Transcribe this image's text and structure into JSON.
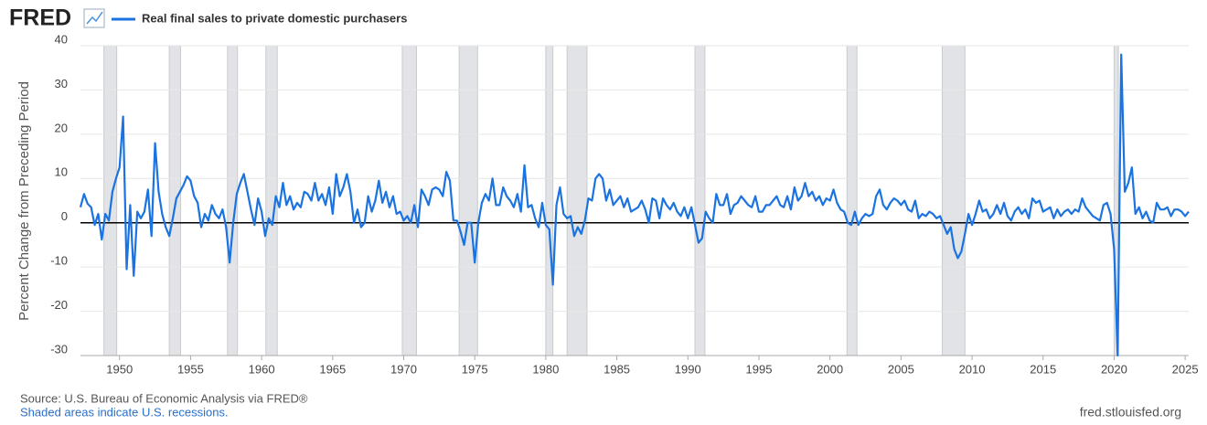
{
  "logo": "FRED",
  "chart_data": {
    "type": "line",
    "ylabel": "Percent Change from Preceding Period",
    "series": [
      {
        "name": "Real final sales to private domestic purchasers",
        "color": "#1a73e0",
        "values": [
          3.5,
          6.5,
          4.3,
          3.5,
          -0.5,
          2,
          -3.8,
          2,
          0.5,
          7,
          10,
          12.5,
          24,
          -10.5,
          4,
          -12,
          2.5,
          1,
          2.5,
          7.5,
          -3,
          18,
          7,
          2,
          -1,
          -3,
          1,
          5.5,
          7,
          8.5,
          10.5,
          9.5,
          6,
          4.5,
          -1,
          2,
          0.5,
          4,
          2,
          1,
          3,
          -1,
          -9,
          0,
          6.5,
          9,
          11,
          7,
          3,
          -0.5,
          5.5,
          2.5,
          -3,
          1,
          -0.5,
          6,
          3.5,
          9,
          4,
          6,
          3,
          4.5,
          3.5,
          7,
          6.5,
          5,
          9,
          5,
          6.5,
          4,
          8,
          2,
          11,
          6,
          8,
          11,
          7,
          0,
          3,
          -1,
          0,
          6,
          2.5,
          5,
          9.5,
          4.5,
          7,
          3.5,
          6,
          2,
          2.5,
          0.5,
          1.5,
          0,
          4,
          -1,
          7.5,
          6,
          4,
          7.5,
          8,
          7.5,
          6,
          11.5,
          9.5,
          0.5,
          0.5,
          -2,
          -5,
          0,
          0,
          -9,
          0,
          4.5,
          6.5,
          5,
          10,
          4,
          4,
          8,
          6,
          5,
          3.5,
          6.5,
          2.5,
          13,
          3.5,
          4,
          1,
          -1,
          4.5,
          -0.5,
          -1.5,
          -14,
          4,
          8,
          2,
          1,
          1.5,
          -3,
          -1,
          -2.5,
          0.5,
          5.5,
          5,
          10,
          11,
          10,
          5,
          7.5,
          4,
          5,
          6,
          3.5,
          5.5,
          2.5,
          3,
          3.5,
          5,
          3,
          0,
          5.5,
          5,
          1,
          5.5,
          4,
          3,
          4.5,
          2.5,
          1.5,
          3.5,
          1,
          3.5,
          -0.5,
          -4.5,
          -3.5,
          2.5,
          1,
          0,
          6.5,
          4,
          4,
          6.5,
          2,
          4,
          4.5,
          6,
          5,
          4,
          3.5,
          6,
          2.5,
          2.5,
          4,
          4,
          5,
          6,
          4,
          3.5,
          6,
          3,
          8,
          5,
          6,
          9,
          6,
          7,
          5,
          6,
          4,
          5.5,
          5,
          7.5,
          4.5,
          3,
          2.5,
          0,
          -0.5,
          2.5,
          -0.5,
          1,
          2,
          1.5,
          2,
          6,
          7.5,
          4,
          3,
          4.5,
          5.5,
          5,
          4,
          5,
          3,
          2.5,
          5,
          1,
          2,
          1.5,
          2.5,
          2,
          1,
          1.5,
          -0.5,
          -2.5,
          -1,
          -6,
          -8,
          -6.5,
          -2.5,
          2,
          -0.5,
          2,
          5,
          2.5,
          3,
          1,
          2,
          4,
          2,
          4.5,
          1.5,
          0.5,
          2.5,
          3.5,
          2,
          3,
          1,
          5.5,
          4.5,
          5,
          2.5,
          3,
          3.5,
          1,
          3,
          1.5,
          2.5,
          3,
          2,
          3,
          2.5,
          5.5,
          3.5,
          2.5,
          1.5,
          1,
          0.5,
          4,
          4.5,
          2,
          -6,
          -30,
          38,
          7,
          9,
          12.5,
          2,
          3.5,
          1,
          2.5,
          0.5,
          0,
          4.5,
          3,
          3,
          3.5,
          1.5,
          3,
          3,
          2.5,
          1.5,
          2.5
        ]
      }
    ],
    "x": [
      1947.25,
      1947.5,
      1947.75,
      1948,
      1948.25,
      1948.5,
      1948.75,
      1949,
      1949.25,
      1949.5,
      1949.75,
      1950,
      1950.25,
      1950.5,
      1950.75,
      1951,
      1951.25,
      1951.5,
      1951.75,
      1952,
      1952.25,
      1952.5,
      1952.75,
      1953,
      1953.25,
      1953.5,
      1953.75,
      1954,
      1954.25,
      1954.5,
      1954.75,
      1955,
      1955.25,
      1955.5,
      1955.75,
      1956,
      1956.25,
      1956.5,
      1956.75,
      1957,
      1957.25,
      1957.5,
      1957.75,
      1958,
      1958.25,
      1958.5,
      1958.75,
      1959,
      1959.25,
      1959.5,
      1959.75,
      1960,
      1960.25,
      1960.5,
      1960.75,
      1961,
      1961.25,
      1961.5,
      1961.75,
      1962,
      1962.25,
      1962.5,
      1962.75,
      1963,
      1963.25,
      1963.5,
      1963.75,
      1964,
      1964.25,
      1964.5,
      1964.75,
      1965,
      1965.25,
      1965.5,
      1965.75,
      1966,
      1966.25,
      1966.5,
      1966.75,
      1967,
      1967.25,
      1967.5,
      1967.75,
      1968,
      1968.25,
      1968.5,
      1968.75,
      1969,
      1969.25,
      1969.5,
      1969.75,
      1970,
      1970.25,
      1970.5,
      1970.75,
      1971,
      1971.25,
      1971.5,
      1971.75,
      1972,
      1972.25,
      1972.5,
      1972.75,
      1973,
      1973.25,
      1973.5,
      1973.75,
      1974,
      1974.25,
      1974.5,
      1974.75,
      1975,
      1975.25,
      1975.5,
      1975.75,
      1976,
      1976.25,
      1976.5,
      1976.75,
      1977,
      1977.25,
      1977.5,
      1977.75,
      1978,
      1978.25,
      1978.5,
      1978.75,
      1979,
      1979.25,
      1979.5,
      1979.75,
      1980,
      1980.25,
      1980.5,
      1980.75,
      1981,
      1981.25,
      1981.5,
      1981.75,
      1982,
      1982.25,
      1982.5,
      1982.75,
      1983,
      1983.25,
      1983.5,
      1983.75,
      1984,
      1984.25,
      1984.5,
      1984.75,
      1985,
      1985.25,
      1985.5,
      1985.75,
      1986,
      1986.25,
      1986.5,
      1986.75,
      1987,
      1987.25,
      1987.5,
      1987.75,
      1988,
      1988.25,
      1988.5,
      1988.75,
      1989,
      1989.25,
      1989.5,
      1989.75,
      1990,
      1990.25,
      1990.5,
      1990.75,
      1991,
      1991.25,
      1991.5,
      1991.75,
      1992,
      1992.25,
      1992.5,
      1992.75,
      1993,
      1993.25,
      1993.5,
      1993.75,
      1994,
      1994.25,
      1994.5,
      1994.75,
      1995,
      1995.25,
      1995.5,
      1995.75,
      1996,
      1996.25,
      1996.5,
      1996.75,
      1997,
      1997.25,
      1997.5,
      1997.75,
      1998,
      1998.25,
      1998.5,
      1998.75,
      1999,
      1999.25,
      1999.5,
      1999.75,
      2000,
      2000.25,
      2000.5,
      2000.75,
      2001,
      2001.25,
      2001.5,
      2001.75,
      2002,
      2002.25,
      2002.5,
      2002.75,
      2003,
      2003.25,
      2003.5,
      2003.75,
      2004,
      2004.25,
      2004.5,
      2004.75,
      2005,
      2005.25,
      2005.5,
      2005.75,
      2006,
      2006.25,
      2006.5,
      2006.75,
      2007,
      2007.25,
      2007.5,
      2007.75,
      2008,
      2008.25,
      2008.5,
      2008.75,
      2009,
      2009.25,
      2009.5,
      2009.75,
      2010,
      2010.25,
      2010.5,
      2010.75,
      2011,
      2011.25,
      2011.5,
      2011.75,
      2012,
      2012.25,
      2012.5,
      2012.75,
      2013,
      2013.25,
      2013.5,
      2013.75,
      2014,
      2014.25,
      2014.5,
      2014.75,
      2015,
      2015.25,
      2015.5,
      2015.75,
      2016,
      2016.25,
      2016.5,
      2016.75,
      2017,
      2017.25,
      2017.5,
      2017.75,
      2018,
      2018.25,
      2018.5,
      2018.75,
      2019,
      2019.25,
      2019.5,
      2019.75,
      2020,
      2020.25,
      2020.5,
      2020.75,
      2021,
      2021.25,
      2021.5,
      2021.75,
      2022,
      2022.25,
      2022.5,
      2022.75,
      2023,
      2023.25,
      2023.5,
      2023.75,
      2024,
      2024.25,
      2024.5,
      2024.75,
      2025,
      2025.25
    ],
    "xlim": [
      1947.25,
      2025.25
    ],
    "xticks": [
      1950,
      1955,
      1960,
      1965,
      1970,
      1975,
      1980,
      1985,
      1990,
      1995,
      2000,
      2005,
      2010,
      2015,
      2020,
      2025
    ],
    "ylim": [
      -30,
      40
    ],
    "yticks": [
      -30,
      -20,
      -10,
      0,
      10,
      20,
      30,
      40
    ],
    "grid": true,
    "recessions": [
      [
        1948.9,
        1949.8
      ],
      [
        1953.5,
        1954.3
      ],
      [
        1957.6,
        1958.3
      ],
      [
        1960.3,
        1961.1
      ],
      [
        1969.9,
        1970.9
      ],
      [
        1973.9,
        1975.2
      ],
      [
        1980.0,
        1980.5
      ],
      [
        1981.5,
        1982.9
      ],
      [
        1990.5,
        1991.2
      ],
      [
        2001.2,
        2001.9
      ],
      [
        2007.9,
        2009.5
      ],
      [
        2020.0,
        2020.3
      ]
    ]
  },
  "footer": {
    "source": "Source: U.S. Bureau of Economic Analysis via FRED®",
    "note": "Shaded areas indicate U.S. recessions.",
    "site": "fred.stlouisfed.org"
  }
}
